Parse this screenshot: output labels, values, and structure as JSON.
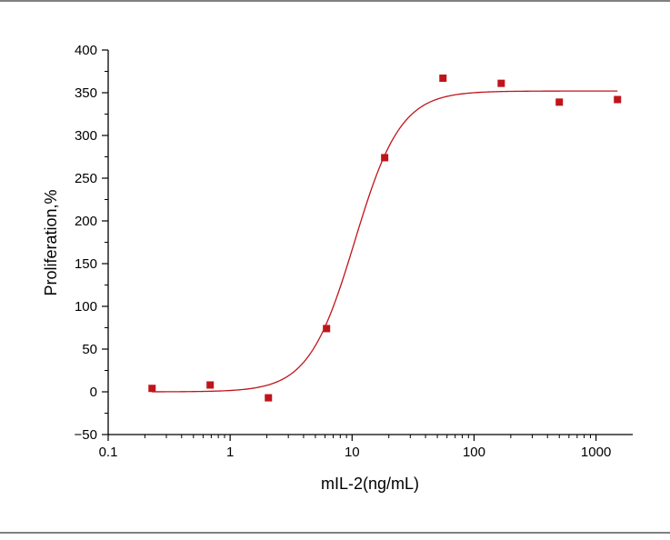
{
  "chart_data": {
    "type": "scatter",
    "title": "",
    "xlabel": "mIL-2(ng/mL)",
    "ylabel": "Proliferation,%",
    "x_scale": "log",
    "xlim": [
      0.1,
      2000
    ],
    "ylim": [
      -50,
      400
    ],
    "x_ticks": [
      {
        "value": 0.1,
        "label": "0.1"
      },
      {
        "value": 1,
        "label": "1"
      },
      {
        "value": 10,
        "label": "10"
      },
      {
        "value": 100,
        "label": "100"
      },
      {
        "value": 1000,
        "label": "1000"
      }
    ],
    "y_ticks": [
      {
        "value": -50,
        "label": "−50"
      },
      {
        "value": 0,
        "label": "0"
      },
      {
        "value": 50,
        "label": "50"
      },
      {
        "value": 100,
        "label": "100"
      },
      {
        "value": 150,
        "label": "150"
      },
      {
        "value": 200,
        "label": "200"
      },
      {
        "value": 250,
        "label": "250"
      },
      {
        "value": 300,
        "label": "300"
      },
      {
        "value": 350,
        "label": "350"
      },
      {
        "value": 400,
        "label": "400"
      }
    ],
    "grid": false,
    "legend": "none",
    "series": [
      {
        "kind": "points",
        "color": "#c0141b",
        "marker": "square",
        "x": [
          0.229,
          0.686,
          2.06,
          6.17,
          18.5,
          55.6,
          167,
          500,
          1500
        ],
        "y": [
          4,
          8,
          -7,
          74,
          274,
          367,
          361,
          339,
          342
        ]
      },
      {
        "kind": "fitted-curve",
        "color": "#c0141b",
        "model": "4PL",
        "bottom": 0,
        "top": 352,
        "ec50": 10.5,
        "hill": 2.3,
        "x_range": [
          0.229,
          1500
        ]
      }
    ]
  }
}
